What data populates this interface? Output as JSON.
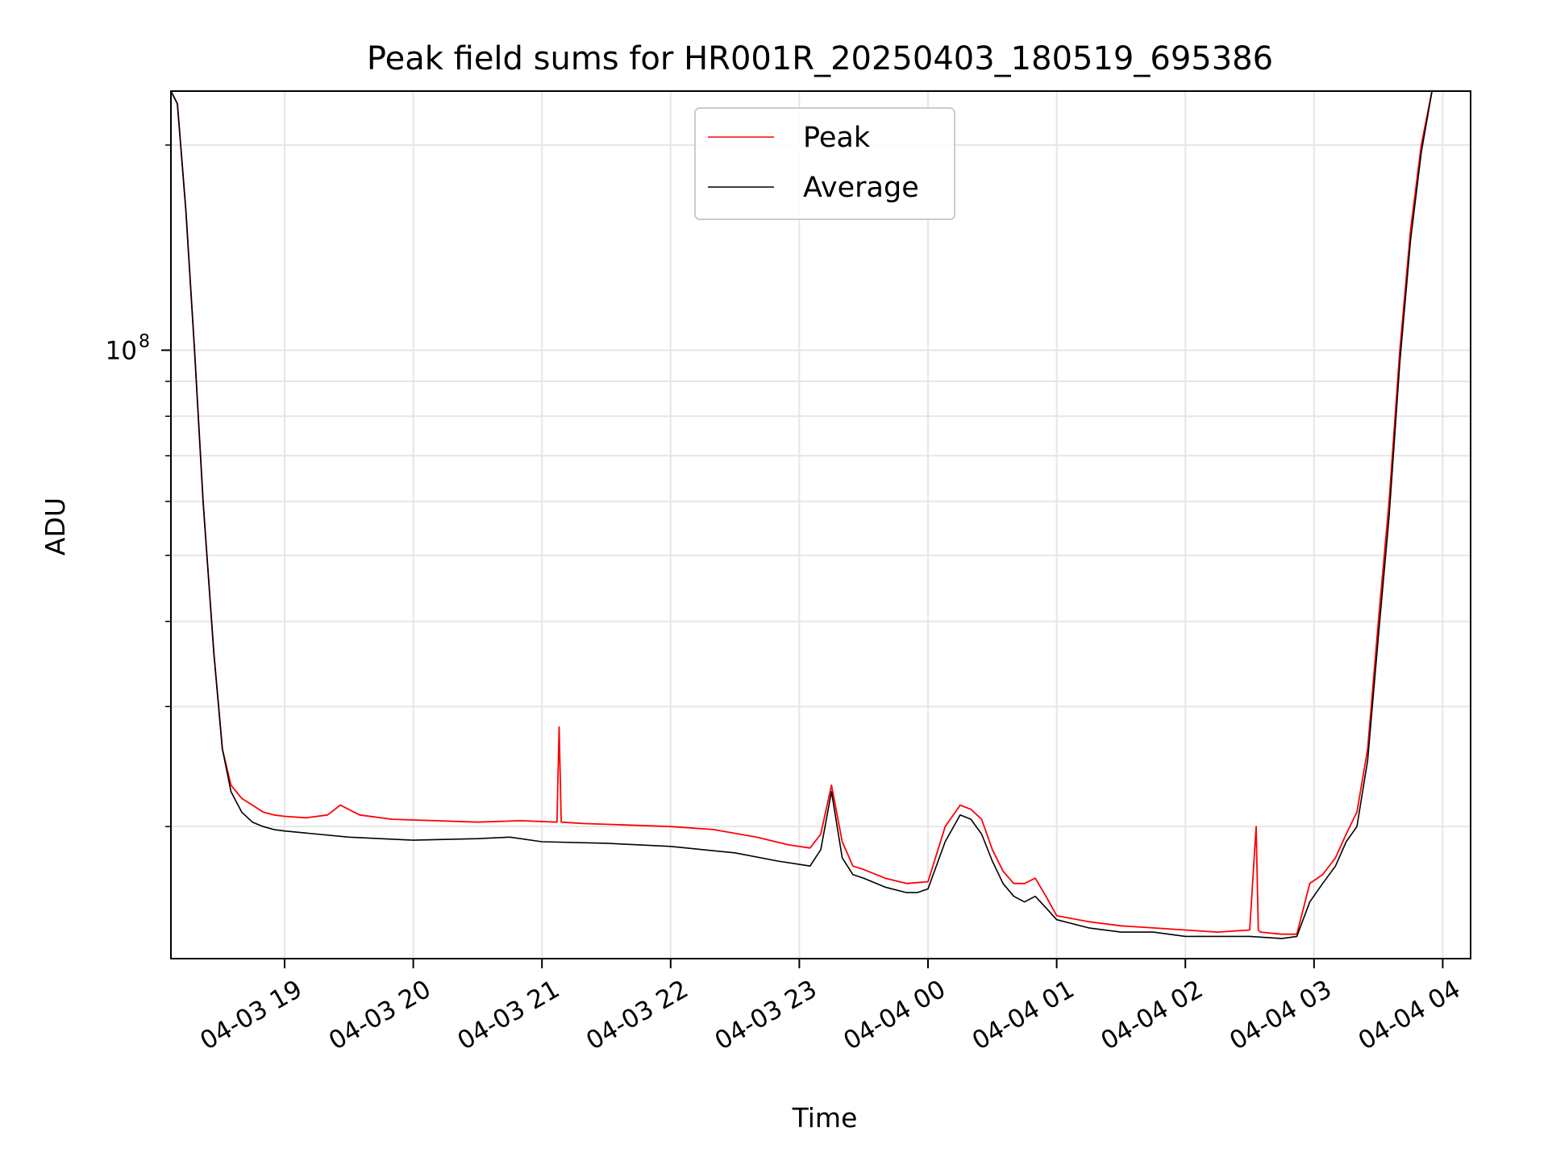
{
  "chart_data": {
    "type": "line",
    "title": "Peak field sums for HR001R_20250403_180519_695386",
    "xlabel": "Time",
    "ylabel": "ADU",
    "yscale": "log",
    "xlim": [
      "2025-04-03 18:07",
      "2025-04-04 04:13"
    ],
    "ylim": [
      12800000,
      240000000
    ],
    "x_ticks": [
      "04-03 19",
      "04-03 20",
      "04-03 21",
      "04-03 22",
      "04-03 23",
      "04-04 00",
      "04-04 01",
      "04-04 02",
      "04-04 03",
      "04-04 04"
    ],
    "y_ticks": [
      {
        "value": 100000000,
        "base": "10",
        "exp": "8"
      }
    ],
    "grid": true,
    "legend": "upper center",
    "series": [
      {
        "name": "Peak",
        "color": "#ff0000",
        "x": [
          "2025-04-03 18:07",
          "2025-04-03 18:10",
          "2025-04-03 18:14",
          "2025-04-03 18:18",
          "2025-04-03 18:22",
          "2025-04-03 18:27",
          "2025-04-03 18:31",
          "2025-04-03 18:35",
          "2025-04-03 18:40",
          "2025-04-03 18:45",
          "2025-04-03 18:50",
          "2025-04-03 18:55",
          "2025-04-03 19:00",
          "2025-04-03 19:10",
          "2025-04-03 19:20",
          "2025-04-03 19:26",
          "2025-04-03 19:35",
          "2025-04-03 19:50",
          "2025-04-03 20:10",
          "2025-04-03 20:30",
          "2025-04-03 20:50",
          "2025-04-03 21:07",
          "2025-04-03 21:08",
          "2025-04-03 21:09",
          "2025-04-03 21:20",
          "2025-04-03 21:40",
          "2025-04-03 22:00",
          "2025-04-03 22:20",
          "2025-04-03 22:40",
          "2025-04-03 22:55",
          "2025-04-03 23:05",
          "2025-04-03 23:10",
          "2025-04-03 23:15",
          "2025-04-03 23:20",
          "2025-04-03 23:25",
          "2025-04-03 23:30",
          "2025-04-03 23:40",
          "2025-04-03 23:50",
          "2025-04-04 00:00",
          "2025-04-04 00:08",
          "2025-04-04 00:15",
          "2025-04-04 00:20",
          "2025-04-04 00:25",
          "2025-04-04 00:30",
          "2025-04-04 00:35",
          "2025-04-04 00:40",
          "2025-04-04 00:45",
          "2025-04-04 00:50",
          "2025-04-04 00:55",
          "2025-04-04 01:00",
          "2025-04-04 01:15",
          "2025-04-04 01:30",
          "2025-04-04 01:45",
          "2025-04-04 02:00",
          "2025-04-04 02:15",
          "2025-04-04 02:30",
          "2025-04-04 02:33",
          "2025-04-04 02:34",
          "2025-04-04 02:35",
          "2025-04-04 02:45",
          "2025-04-04 02:52",
          "2025-04-04 02:58",
          "2025-04-04 03:04",
          "2025-04-04 03:10",
          "2025-04-04 03:15",
          "2025-04-04 03:20",
          "2025-04-04 03:25",
          "2025-04-04 03:30",
          "2025-04-04 03:35",
          "2025-04-04 03:40",
          "2025-04-04 03:45",
          "2025-04-04 03:50",
          "2025-04-04 03:55",
          "2025-04-04 04:00"
        ],
        "y": [
          240000000,
          230000000,
          160000000,
          100000000,
          60000000,
          36000000,
          26000000,
          23000000,
          22000000,
          21500000,
          21000000,
          20800000,
          20700000,
          20600000,
          20800000,
          21500000,
          20800000,
          20500000,
          20400000,
          20300000,
          20400000,
          20300000,
          28000000,
          20300000,
          20200000,
          20100000,
          20000000,
          19800000,
          19300000,
          18800000,
          18600000,
          19500000,
          23000000,
          19000000,
          17500000,
          17300000,
          16800000,
          16500000,
          16600000,
          20000000,
          21500000,
          21200000,
          20500000,
          18500000,
          17200000,
          16500000,
          16500000,
          16800000,
          15800000,
          14800000,
          14500000,
          14300000,
          14200000,
          14100000,
          14000000,
          14100000,
          20000000,
          14100000,
          14000000,
          13900000,
          13900000,
          16500000,
          17000000,
          18000000,
          19500000,
          21000000,
          26000000,
          40000000,
          60000000,
          100000000,
          150000000,
          200000000,
          240000000,
          240000000
        ]
      },
      {
        "name": "Average",
        "color": "#000000",
        "x": [
          "2025-04-03 18:07",
          "2025-04-03 18:10",
          "2025-04-03 18:14",
          "2025-04-03 18:18",
          "2025-04-03 18:22",
          "2025-04-03 18:27",
          "2025-04-03 18:31",
          "2025-04-03 18:35",
          "2025-04-03 18:40",
          "2025-04-03 18:45",
          "2025-04-03 18:50",
          "2025-04-03 18:55",
          "2025-04-03 19:00",
          "2025-04-03 19:30",
          "2025-04-03 20:00",
          "2025-04-03 20:30",
          "2025-04-03 20:45",
          "2025-04-03 21:00",
          "2025-04-03 21:30",
          "2025-04-03 22:00",
          "2025-04-03 22:30",
          "2025-04-03 22:50",
          "2025-04-03 23:00",
          "2025-04-03 23:05",
          "2025-04-03 23:10",
          "2025-04-03 23:15",
          "2025-04-03 23:20",
          "2025-04-03 23:25",
          "2025-04-03 23:30",
          "2025-04-03 23:40",
          "2025-04-03 23:50",
          "2025-04-03 23:55",
          "2025-04-04 00:00",
          "2025-04-04 00:08",
          "2025-04-04 00:15",
          "2025-04-04 00:20",
          "2025-04-04 00:25",
          "2025-04-04 00:30",
          "2025-04-04 00:35",
          "2025-04-04 00:40",
          "2025-04-04 00:45",
          "2025-04-04 00:50",
          "2025-04-04 00:55",
          "2025-04-04 01:00",
          "2025-04-04 01:15",
          "2025-04-04 01:30",
          "2025-04-04 01:45",
          "2025-04-04 02:00",
          "2025-04-04 02:15",
          "2025-04-04 02:30",
          "2025-04-04 02:45",
          "2025-04-04 02:52",
          "2025-04-04 02:58",
          "2025-04-04 03:04",
          "2025-04-04 03:10",
          "2025-04-04 03:15",
          "2025-04-04 03:20",
          "2025-04-04 03:25",
          "2025-04-04 03:30",
          "2025-04-04 03:35",
          "2025-04-04 03:40",
          "2025-04-04 03:45",
          "2025-04-04 03:50",
          "2025-04-04 03:55",
          "2025-04-04 04:00"
        ],
        "y": [
          240000000,
          230000000,
          160000000,
          100000000,
          60000000,
          36000000,
          26000000,
          22500000,
          21000000,
          20300000,
          20000000,
          19800000,
          19700000,
          19300000,
          19100000,
          19200000,
          19300000,
          19000000,
          18900000,
          18700000,
          18300000,
          17800000,
          17600000,
          17500000,
          18500000,
          22500000,
          18000000,
          17000000,
          16800000,
          16300000,
          16000000,
          16000000,
          16200000,
          19000000,
          20800000,
          20500000,
          19500000,
          17800000,
          16500000,
          15800000,
          15500000,
          15800000,
          15200000,
          14600000,
          14200000,
          14000000,
          14000000,
          13800000,
          13800000,
          13800000,
          13700000,
          13800000,
          15500000,
          16500000,
          17500000,
          19000000,
          20000000,
          25000000,
          38000000,
          57000000,
          96000000,
          145000000,
          195000000,
          240000000,
          240000000
        ]
      }
    ]
  }
}
